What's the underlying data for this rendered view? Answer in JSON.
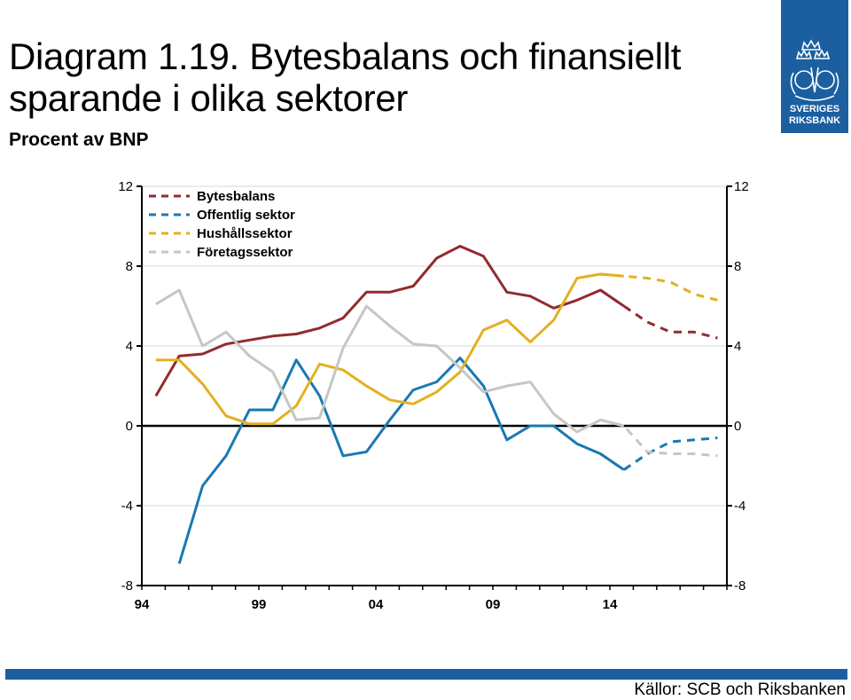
{
  "header": {
    "title": "Diagram 1.19. Bytesbalans och finansiellt sparande i olika sektorer",
    "subtitle": "Procent av BNP"
  },
  "logo": {
    "line1": "SVERIGES",
    "line2": "RIKSBANK"
  },
  "footer": {
    "source": "Källor: SCB och Riksbanken"
  },
  "colors": {
    "bytesbalans": "#922b2f",
    "offentlig": "#1a78b4",
    "hushall": "#e3b021",
    "foretag": "#c6c6c6",
    "brand": "#1b5fa1"
  },
  "chart_data": {
    "type": "line",
    "title": "",
    "xlabel": "",
    "ylabel": "",
    "ylim": [
      -8,
      12
    ],
    "xlim": [
      1994,
      2019
    ],
    "yticks": [
      12,
      8,
      4,
      0,
      -4,
      -8
    ],
    "xticks": [
      {
        "value": 1994,
        "label": "94"
      },
      {
        "value": 1999,
        "label": "99"
      },
      {
        "value": 2004,
        "label": "04"
      },
      {
        "value": 2009,
        "label": "09"
      },
      {
        "value": 2014,
        "label": "14"
      }
    ],
    "grid": true,
    "legend_position": "top-left",
    "forecast_from": 2014,
    "series": [
      {
        "name": "Bytesbalans",
        "color": "#922b2f",
        "x": [
          1994.6,
          1995.6,
          1996.6,
          1997.6,
          1998.6,
          1999.6,
          2000.6,
          2001.6,
          2002.6,
          2003.6,
          2004.6,
          2005.6,
          2006.6,
          2007.6,
          2008.6,
          2009.6,
          2010.6,
          2011.6,
          2012.6,
          2013.6,
          2014.6,
          2015.6,
          2016.6,
          2017.6,
          2018.6
        ],
        "values": [
          1.5,
          3.5,
          3.6,
          4.1,
          4.3,
          4.5,
          4.6,
          4.9,
          5.4,
          6.7,
          6.7,
          7.0,
          8.4,
          9.0,
          8.5,
          6.7,
          6.5,
          5.9,
          6.3,
          6.8,
          6.0,
          5.2,
          4.7,
          4.7,
          4.4
        ]
      },
      {
        "name": "Offentlig sektor",
        "color": "#1a78b4",
        "x": [
          1995.6,
          1996.6,
          1997.6,
          1998.6,
          1999.6,
          2000.6,
          2001.6,
          2002.6,
          2003.6,
          2004.6,
          2005.6,
          2006.6,
          2007.6,
          2008.6,
          2009.6,
          2010.6,
          2011.6,
          2012.6,
          2013.6,
          2014.6,
          2015.6,
          2016.6,
          2017.6,
          2018.6
        ],
        "values": [
          -6.9,
          -3.0,
          -1.5,
          0.8,
          0.8,
          3.3,
          1.5,
          -1.5,
          -1.3,
          0.3,
          1.8,
          2.2,
          3.4,
          2.0,
          -0.7,
          0.0,
          0.0,
          -0.9,
          -1.4,
          -2.2,
          -1.4,
          -0.8,
          -0.7,
          -0.6
        ]
      },
      {
        "name": "Hushållssektor",
        "color": "#e3b021",
        "x": [
          1994.6,
          1995.6,
          1996.6,
          1997.6,
          1998.6,
          1999.6,
          2000.6,
          2001.6,
          2002.6,
          2003.6,
          2004.6,
          2005.6,
          2006.6,
          2007.6,
          2008.6,
          2009.6,
          2010.6,
          2011.6,
          2012.6,
          2013.6,
          2014.6,
          2015.6,
          2016.6,
          2017.6,
          2018.6
        ],
        "values": [
          3.3,
          3.3,
          2.1,
          0.5,
          0.1,
          0.1,
          1.0,
          3.1,
          2.8,
          2.0,
          1.3,
          1.1,
          1.7,
          2.7,
          4.8,
          5.3,
          4.2,
          5.3,
          7.4,
          7.6,
          7.5,
          7.4,
          7.2,
          6.6,
          6.3
        ]
      },
      {
        "name": "Företagssektor",
        "color": "#c6c6c6",
        "x": [
          1994.6,
          1995.6,
          1996.6,
          1997.6,
          1998.6,
          1999.6,
          2000.6,
          2001.6,
          2002.6,
          2003.6,
          2004.6,
          2005.6,
          2006.6,
          2007.6,
          2008.6,
          2009.6,
          2010.6,
          2011.6,
          2012.6,
          2013.6,
          2014.6,
          2015.6,
          2016.6,
          2017.6,
          2018.6
        ],
        "values": [
          6.1,
          6.8,
          4.0,
          4.7,
          3.5,
          2.7,
          0.3,
          0.4,
          3.9,
          6.0,
          5.0,
          4.1,
          4.0,
          2.9,
          1.7,
          2.0,
          2.2,
          0.6,
          -0.3,
          0.3,
          0.0,
          -1.3,
          -1.4,
          -1.4,
          -1.5
        ]
      }
    ]
  }
}
